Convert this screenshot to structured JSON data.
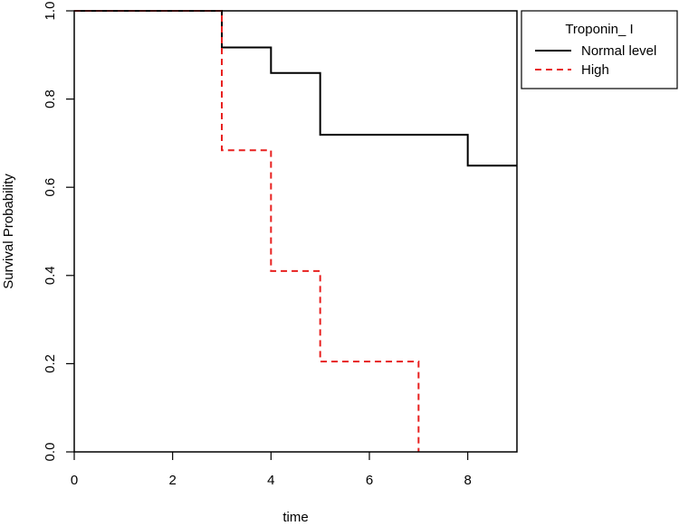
{
  "chart_data": {
    "type": "line",
    "title": "",
    "xlabel": "time",
    "ylabel": "Survival Probability",
    "xlim": [
      0,
      9
    ],
    "ylim": [
      0,
      1
    ],
    "x_ticks": [
      0,
      2,
      4,
      6,
      8
    ],
    "y_ticks": [
      0.0,
      0.2,
      0.4,
      0.6,
      0.8,
      1.0
    ],
    "x_tick_labels": [
      "0",
      "2",
      "4",
      "6",
      "8"
    ],
    "y_tick_labels": [
      "0.0",
      "0.2",
      "0.4",
      "0.6",
      "0.8",
      "1.0"
    ],
    "grid": false,
    "step": true,
    "legend": {
      "title": "Troponin_ I",
      "placement": "top-right outside plot"
    },
    "series": [
      {
        "name": "Normal level",
        "color": "#000000",
        "style": "solid",
        "x": [
          0,
          3,
          4,
          5,
          8,
          9
        ],
        "y": [
          1.0,
          0.917,
          0.859,
          0.719,
          0.649,
          0.649
        ]
      },
      {
        "name": "High",
        "color": "#e8201f",
        "style": "dashed",
        "x": [
          0,
          3,
          4,
          5,
          7
        ],
        "y": [
          1.0,
          0.684,
          0.41,
          0.205,
          0.0
        ]
      }
    ]
  }
}
